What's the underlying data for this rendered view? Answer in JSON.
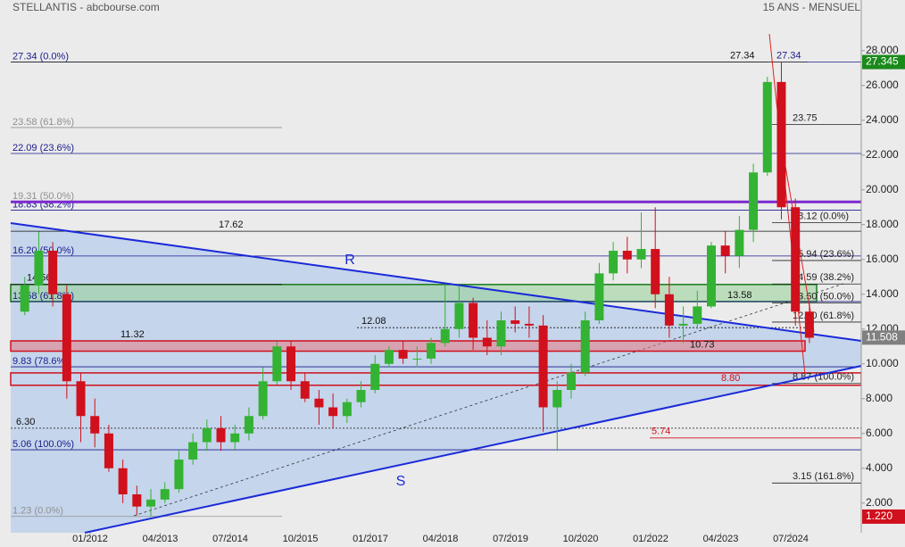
{
  "chart_data": {
    "type": "candlestick",
    "title": "STELLANTIS - abcbourse.com",
    "subtitle": "15 ANS - MENSUEL",
    "x": [
      "10/2010",
      "01/2011",
      "04/2011",
      "07/2011",
      "10/2011",
      "01/2012",
      "04/2012",
      "07/2012",
      "10/2012",
      "01/2013",
      "04/2013",
      "07/2013",
      "10/2013",
      "01/2014",
      "04/2014",
      "07/2014",
      "10/2014",
      "01/2015",
      "04/2015",
      "07/2015",
      "10/2015",
      "01/2016",
      "04/2016",
      "07/2016",
      "10/2016",
      "01/2017",
      "04/2017",
      "07/2017",
      "10/2017",
      "01/2018",
      "04/2018",
      "07/2018",
      "10/2018",
      "01/2019",
      "04/2019",
      "07/2019",
      "10/2019",
      "01/2020",
      "04/2020",
      "07/2020",
      "10/2020",
      "01/2021",
      "04/2021",
      "07/2021",
      "10/2021",
      "01/2022",
      "04/2022",
      "07/2022",
      "10/2022",
      "01/2023",
      "04/2023",
      "07/2023",
      "10/2023",
      "01/2024",
      "04/2024",
      "07/2024",
      "10/2024"
    ],
    "open": [
      13,
      14.5,
      16.5,
      14,
      9,
      7,
      6,
      4,
      2.5,
      1.8,
      2.2,
      2.8,
      4.5,
      5.5,
      6.3,
      5.5,
      6,
      7,
      9,
      11,
      9,
      8,
      7.5,
      7,
      7.8,
      8.5,
      10,
      10.8,
      10.3,
      10.3,
      11.2,
      12,
      13.5,
      11.5,
      11,
      12.5,
      12.3,
      12.2,
      7.5,
      8.5,
      9.5,
      12.5,
      15.2,
      16.5,
      16,
      16.6,
      14,
      12.2,
      12.3,
      13.3,
      16.8,
      16.2,
      17.7,
      21,
      26.2,
      19,
      13
    ],
    "high": [
      15,
      17.6,
      17,
      14.5,
      9.5,
      8,
      6.5,
      4.5,
      3,
      2.8,
      3.2,
      5,
      6,
      6.8,
      7,
      6.5,
      7.5,
      9.8,
      11.3,
      11.3,
      9.5,
      8.5,
      8.3,
      8,
      9,
      10.5,
      11,
      11.3,
      11,
      11.5,
      14.5,
      14.5,
      13.8,
      12.5,
      13,
      13.3,
      13.3,
      12.8,
      9,
      10,
      13,
      15.8,
      17,
      17.3,
      18.7,
      19,
      15,
      13.3,
      14.2,
      17,
      17.6,
      18.5,
      21.5,
      26.5,
      27.34,
      19.5,
      13.5
    ],
    "low": [
      12.8,
      14,
      13.3,
      8,
      5.5,
      5.2,
      3.8,
      2,
      1.3,
      1.23,
      2,
      2.6,
      4.2,
      5,
      5,
      5,
      5.6,
      6.8,
      8.8,
      8.5,
      7.8,
      6.5,
      6.3,
      6.6,
      7.5,
      8.3,
      9.8,
      10,
      9.8,
      10,
      11,
      11.5,
      10.8,
      10.5,
      10.5,
      11.8,
      11.5,
      6.1,
      5,
      8,
      9.3,
      12.3,
      14.8,
      15.2,
      15.5,
      13.2,
      11.5,
      11.2,
      12,
      13.2,
      15.2,
      15.5,
      17,
      20.8,
      18.3,
      12.2,
      11.2
    ],
    "close": [
      14.5,
      16.5,
      14,
      9,
      7,
      6,
      4,
      2.5,
      1.8,
      2.2,
      2.8,
      4.5,
      5.5,
      6.3,
      5.5,
      6,
      7,
      9,
      11,
      9,
      8,
      7.5,
      7,
      7.8,
      8.5,
      10,
      10.8,
      10.3,
      10.3,
      11.2,
      12,
      13.5,
      11.5,
      11,
      12.5,
      12.3,
      12.2,
      7.5,
      8.5,
      9.5,
      12.5,
      15.2,
      16.5,
      16,
      16.6,
      14,
      12.2,
      12.3,
      13.3,
      16.8,
      16.2,
      17.7,
      21,
      26.2,
      19,
      13,
      11.5
    ],
    "up_color": "#33b233",
    "down_color": "#d0101c",
    "ylim": [
      0.5,
      30.5
    ],
    "yticks": [
      {
        "value": 2,
        "label": "2.000"
      },
      {
        "value": 4,
        "label": "4.000"
      },
      {
        "value": 6,
        "label": "6.000"
      },
      {
        "value": 8,
        "label": "8.000"
      },
      {
        "value": 10,
        "label": "10.000"
      },
      {
        "value": 12,
        "label": "12.000"
      },
      {
        "value": 14,
        "label": "14.000"
      },
      {
        "value": 16,
        "label": "16.000"
      },
      {
        "value": 18,
        "label": "18.000"
      },
      {
        "value": 20,
        "label": "20.000"
      },
      {
        "value": 22,
        "label": "22.000"
      },
      {
        "value": 24,
        "label": "24.000"
      },
      {
        "value": 26,
        "label": "26.000"
      },
      {
        "value": 28,
        "label": "28.000"
      }
    ],
    "xticks": [
      "01/2012",
      "04/2013",
      "07/2014",
      "10/2015",
      "01/2017",
      "04/2018",
      "07/2019",
      "10/2020",
      "01/2022",
      "04/2023",
      "07/2024"
    ],
    "fib_long": [
      {
        "value": 27.34,
        "label": "27.34 (0.0%)",
        "color": "#1a1a8c"
      },
      {
        "value": 23.58,
        "label": "23.58 (61.8%)",
        "color": "#909090"
      },
      {
        "value": 22.09,
        "label": "22.09 (23.6%)",
        "color": "#1a1a8c"
      },
      {
        "value": 19.31,
        "label": "19.31 (50.0%)",
        "color": "#909090"
      },
      {
        "value": 18.83,
        "label": "18.83 (38.2%)",
        "color": "#1a1a8c"
      },
      {
        "value": 16.2,
        "label": "16.20 (50.0%)",
        "color": "#1a1a8c"
      },
      {
        "value": 13.58,
        "label": "13.58 (61.8%)",
        "color": "#1a1a8c"
      },
      {
        "value": 9.83,
        "label": "9.83 (78.6%)",
        "color": "#1a1a8c"
      },
      {
        "value": 5.06,
        "label": "5.06 (100.0%)",
        "color": "#1a1a8c"
      },
      {
        "value": 1.23,
        "label": "1.23 (0.0%)",
        "color": "#909090"
      }
    ],
    "fib_short": [
      {
        "value": 27.34,
        "label": "27.34",
        "color": "#1a1a8c"
      },
      {
        "value": 23.75,
        "label": "23.75",
        "color": "#222"
      },
      {
        "value": 18.12,
        "label": "18.12 (0.0%)",
        "color": "#222"
      },
      {
        "value": 15.94,
        "label": "15.94 (23.6%)",
        "color": "#222"
      },
      {
        "value": 14.59,
        "label": "14.59 (38.2%)",
        "color": "#222"
      },
      {
        "value": 13.5,
        "label": "13.50 (50.0%)",
        "color": "#222"
      },
      {
        "value": 12.4,
        "label": "12.40 (61.8%)",
        "color": "#222"
      },
      {
        "value": 8.87,
        "label": "8.87 (100.0%)",
        "color": "#222"
      },
      {
        "value": 3.15,
        "label": "3.15 (161.8%)",
        "color": "#222"
      }
    ],
    "levels": [
      {
        "value": 27.34,
        "label": "27.34",
        "color": "#111"
      },
      {
        "value": 17.62,
        "label": "17.62",
        "color": "#111"
      },
      {
        "value": 14.56,
        "label": "14.56",
        "color": "#111"
      },
      {
        "value": 13.58,
        "label": "13.58",
        "color": "#111"
      },
      {
        "value": 12.08,
        "label": "12.08",
        "color": "#111"
      },
      {
        "value": 11.32,
        "label": "11.32",
        "color": "#111"
      },
      {
        "value": 10.73,
        "label": "10.73",
        "color": "#111"
      },
      {
        "value": 6.3,
        "label": "6.30",
        "color": "#111"
      },
      {
        "value": 8.8,
        "label": "8.80",
        "color": "#d0101c"
      },
      {
        "value": 5.74,
        "label": "5.74",
        "color": "#d0101c"
      }
    ],
    "zones": [
      {
        "low": 13.58,
        "high": 14.56,
        "color": "#1a7a1a",
        "fill": "rgba(150,210,150,0.55)"
      },
      {
        "low": 10.73,
        "high": 11.32,
        "color": "#d0101c",
        "fill": "rgba(230,120,130,0.55)"
      },
      {
        "low": 8.77,
        "high": 9.48,
        "color": "#d0101c",
        "fill": "none"
      }
    ],
    "resistance_line": {
      "value": 19.31,
      "color": "#7a2ad0"
    },
    "trendlines": [
      {
        "label": "R",
        "color": "#1a2ad8"
      },
      {
        "label": "S",
        "color": "#1a2ad8"
      }
    ],
    "price_tags": [
      {
        "value": 27.345,
        "label": "27.345",
        "color": "#1a8a1a"
      },
      {
        "value": 11.508,
        "label": "11.508",
        "color": "#808080"
      },
      {
        "value": 1.22,
        "label": "1.220",
        "color": "#d0101c"
      }
    ]
  }
}
